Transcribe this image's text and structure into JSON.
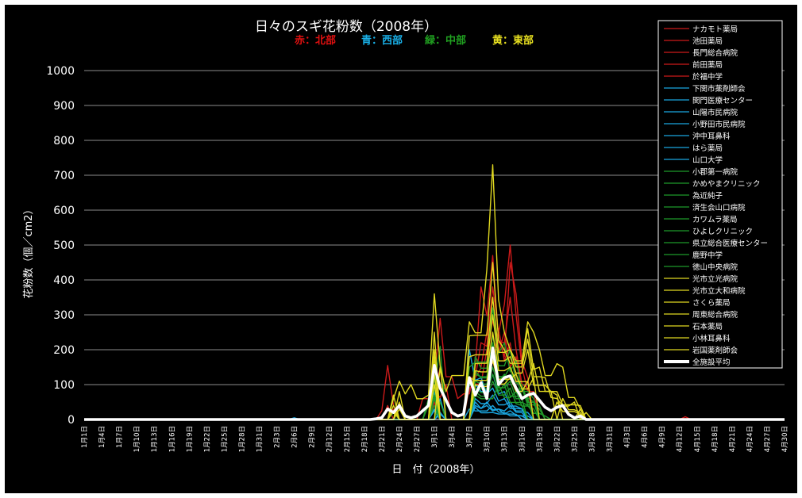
{
  "chart_data": {
    "type": "line",
    "title": "日々のスギ花粉数（2008年）",
    "region_labels": [
      {
        "text": "赤：北部",
        "color": "#e01010"
      },
      {
        "text": "青：西部",
        "color": "#19b0e8"
      },
      {
        "text": "緑：中部",
        "color": "#20a020"
      },
      {
        "text": "黄：東部",
        "color": "#e8e020"
      }
    ],
    "xlabel": "日　付（2008年）",
    "ylabel": "花粉数（個／cm2）",
    "ylim": [
      0,
      1000
    ],
    "yticks": [
      0,
      100,
      200,
      300,
      400,
      500,
      600,
      700,
      800,
      900,
      1000
    ],
    "x_start": "2008-01-01",
    "num_days": 121,
    "x_tick_labels": [
      "1月1日",
      "1月4日",
      "1月7日",
      "1月10日",
      "1月13日",
      "1月16日",
      "1月19日",
      "1月22日",
      "1月25日",
      "1月28日",
      "1月31日",
      "2月3日",
      "2月6日",
      "2月9日",
      "2月12日",
      "2月15日",
      "2月18日",
      "2月21日",
      "2月24日",
      "2月27日",
      "3月1日",
      "3月4日",
      "3月7日",
      "3月10日",
      "3月13日",
      "3月16日",
      "3月19日",
      "3月22日",
      "3月25日",
      "3月28日",
      "3月31日",
      "4月3日",
      "4月6日",
      "4月9日",
      "4月12日",
      "4月15日",
      "4月18日",
      "4月21日",
      "4月24日",
      "4月27日",
      "4月30日"
    ],
    "grid": true,
    "legend_position": "right",
    "series": [
      {
        "name": "ナカモト薬局",
        "color": "#cc1a1a",
        "peaks": [
          [
            51,
            25
          ],
          [
            52,
            155
          ],
          [
            53,
            40
          ],
          [
            58,
            60
          ],
          [
            60,
            110
          ],
          [
            61,
            290
          ],
          [
            64,
            60
          ],
          [
            67,
            150
          ],
          [
            68,
            380
          ],
          [
            70,
            470
          ],
          [
            72,
            180
          ],
          [
            73,
            450
          ],
          [
            74,
            360
          ],
          [
            76,
            120
          ]
        ]
      },
      {
        "name": "池田薬局",
        "color": "#cc1a1a",
        "peaks": [
          [
            53,
            30
          ],
          [
            59,
            50
          ],
          [
            61,
            150
          ],
          [
            66,
            120
          ],
          [
            68,
            220
          ],
          [
            70,
            380
          ],
          [
            72,
            330
          ],
          [
            73,
            500
          ],
          [
            74,
            300
          ],
          [
            75,
            150
          ],
          [
            77,
            80
          ],
          [
            103,
            8
          ]
        ]
      },
      {
        "name": "長門総合病院",
        "color": "#cc1a1a",
        "peaks": [
          [
            52,
            40
          ],
          [
            60,
            80
          ],
          [
            62,
            100
          ],
          [
            67,
            180
          ],
          [
            69,
            250
          ],
          [
            70,
            280
          ],
          [
            73,
            350
          ],
          [
            74,
            200
          ],
          [
            76,
            90
          ]
        ]
      },
      {
        "name": "前田薬局",
        "color": "#cc1a1a",
        "peaks": [
          [
            53,
            20
          ],
          [
            60,
            60
          ],
          [
            66,
            90
          ],
          [
            69,
            200
          ],
          [
            71,
            260
          ],
          [
            73,
            220
          ],
          [
            75,
            100
          ],
          [
            78,
            40
          ]
        ]
      },
      {
        "name": "於福中学",
        "color": "#cc1a1a",
        "peaks": [
          [
            60,
            50
          ],
          [
            67,
            120
          ],
          [
            70,
            300
          ],
          [
            72,
            250
          ],
          [
            74,
            180
          ],
          [
            76,
            60
          ]
        ]
      },
      {
        "name": "下関市薬剤師会",
        "color": "#1aa6e0",
        "peaks": [
          [
            36,
            5
          ],
          [
            61,
            60
          ],
          [
            67,
            40
          ],
          [
            69,
            50
          ],
          [
            71,
            30
          ],
          [
            73,
            40
          ],
          [
            75,
            20
          ]
        ]
      },
      {
        "name": "関門医療センター",
        "color": "#1aa6e0",
        "peaks": [
          [
            60,
            80
          ],
          [
            66,
            200
          ],
          [
            68,
            120
          ],
          [
            70,
            90
          ],
          [
            72,
            60
          ],
          [
            75,
            30
          ]
        ]
      },
      {
        "name": "山陽市民病院",
        "color": "#1aa6e0",
        "peaks": [
          [
            60,
            40
          ],
          [
            67,
            100
          ],
          [
            70,
            130
          ],
          [
            72,
            80
          ],
          [
            75,
            30
          ]
        ]
      },
      {
        "name": "小野田市民病院",
        "color": "#1aa6e0",
        "peaks": [
          [
            60,
            30
          ],
          [
            67,
            60
          ],
          [
            70,
            70
          ],
          [
            73,
            50
          ],
          [
            76,
            20
          ]
        ]
      },
      {
        "name": "沖中耳鼻科",
        "color": "#1aa6e0",
        "peaks": [
          [
            61,
            20
          ],
          [
            67,
            50
          ],
          [
            69,
            40
          ],
          [
            71,
            30
          ],
          [
            74,
            15
          ]
        ]
      },
      {
        "name": "はら薬局",
        "color": "#1aa6e0",
        "peaks": [
          [
            60,
            25
          ],
          [
            66,
            30
          ],
          [
            70,
            40
          ],
          [
            72,
            20
          ],
          [
            76,
            10
          ]
        ]
      },
      {
        "name": "山口大学",
        "color": "#1aa6e0",
        "peaks": [
          [
            61,
            15
          ],
          [
            67,
            35
          ],
          [
            70,
            20
          ],
          [
            73,
            25
          ],
          [
            75,
            10
          ]
        ]
      },
      {
        "name": "小郡第一病院",
        "color": "#1e9a2a",
        "peaks": [
          [
            53,
            20
          ],
          [
            59,
            60
          ],
          [
            60,
            160
          ],
          [
            67,
            180
          ],
          [
            70,
            240
          ],
          [
            73,
            200
          ],
          [
            75,
            100
          ],
          [
            78,
            40
          ]
        ]
      },
      {
        "name": "かめやまクリニック",
        "color": "#1e9a2a",
        "peaks": [
          [
            53,
            25
          ],
          [
            60,
            120
          ],
          [
            66,
            150
          ],
          [
            70,
            320
          ],
          [
            72,
            220
          ],
          [
            74,
            170
          ],
          [
            77,
            60
          ]
        ]
      },
      {
        "name": "為近純子",
        "color": "#1e9a2a",
        "peaks": [
          [
            60,
            100
          ],
          [
            67,
            140
          ],
          [
            70,
            200
          ],
          [
            73,
            150
          ],
          [
            75,
            90
          ],
          [
            78,
            30
          ]
        ]
      },
      {
        "name": "済生会山口病院",
        "color": "#1e9a2a",
        "peaks": [
          [
            59,
            40
          ],
          [
            61,
            210
          ],
          [
            67,
            110
          ],
          [
            70,
            180
          ],
          [
            72,
            130
          ],
          [
            76,
            60
          ]
        ]
      },
      {
        "name": "カワムラ薬局",
        "color": "#1e9a2a",
        "peaks": [
          [
            60,
            90
          ],
          [
            67,
            130
          ],
          [
            70,
            220
          ],
          [
            74,
            130
          ],
          [
            77,
            50
          ]
        ]
      },
      {
        "name": "ひよしクリニック",
        "color": "#1e9a2a",
        "peaks": [
          [
            60,
            70
          ],
          [
            66,
            100
          ],
          [
            70,
            150
          ],
          [
            73,
            110
          ],
          [
            75,
            60
          ]
        ]
      },
      {
        "name": "県立総合医療センター",
        "color": "#1e9a2a",
        "peaks": [
          [
            60,
            60
          ],
          [
            67,
            90
          ],
          [
            70,
            130
          ],
          [
            72,
            100
          ],
          [
            76,
            40
          ],
          [
            79,
            10
          ]
        ]
      },
      {
        "name": "鹿野中学",
        "color": "#1e9a2a",
        "peaks": [
          [
            61,
            50
          ],
          [
            67,
            80
          ],
          [
            70,
            110
          ],
          [
            73,
            90
          ],
          [
            75,
            40
          ]
        ]
      },
      {
        "name": "徳山中央病院",
        "color": "#1e9a2a",
        "peaks": [
          [
            60,
            40
          ],
          [
            67,
            70
          ],
          [
            71,
            100
          ],
          [
            74,
            80
          ],
          [
            77,
            30
          ]
        ]
      },
      {
        "name": "光市立光病院",
        "color": "#e0d820",
        "peaks": [
          [
            53,
            60
          ],
          [
            54,
            110
          ],
          [
            56,
            100
          ],
          [
            59,
            70
          ],
          [
            60,
            360
          ],
          [
            62,
            80
          ],
          [
            66,
            280
          ],
          [
            69,
            430
          ],
          [
            70,
            730
          ],
          [
            72,
            250
          ],
          [
            73,
            200
          ],
          [
            76,
            280
          ],
          [
            77,
            250
          ],
          [
            78,
            200
          ],
          [
            81,
            160
          ],
          [
            82,
            150
          ],
          [
            85,
            30
          ]
        ]
      },
      {
        "name": "光市立大和病院",
        "color": "#e0d820",
        "peaks": [
          [
            54,
            80
          ],
          [
            60,
            250
          ],
          [
            66,
            240
          ],
          [
            70,
            450
          ],
          [
            72,
            200
          ],
          [
            76,
            260
          ],
          [
            78,
            150
          ],
          [
            81,
            80
          ],
          [
            85,
            40
          ]
        ]
      },
      {
        "name": "さくら薬局",
        "color": "#e0d820",
        "peaks": [
          [
            53,
            70
          ],
          [
            60,
            200
          ],
          [
            66,
            180
          ],
          [
            70,
            350
          ],
          [
            73,
            200
          ],
          [
            76,
            230
          ],
          [
            79,
            120
          ],
          [
            81,
            60
          ],
          [
            84,
            50
          ]
        ]
      },
      {
        "name": "周東総合病院",
        "color": "#e0d820",
        "peaks": [
          [
            54,
            50
          ],
          [
            60,
            180
          ],
          [
            67,
            160
          ],
          [
            70,
            300
          ],
          [
            73,
            180
          ],
          [
            76,
            200
          ],
          [
            80,
            80
          ],
          [
            85,
            30
          ]
        ]
      },
      {
        "name": "石本薬局",
        "color": "#e0d820",
        "peaks": [
          [
            53,
            40
          ],
          [
            61,
            150
          ],
          [
            67,
            140
          ],
          [
            70,
            250
          ],
          [
            73,
            150
          ],
          [
            77,
            160
          ],
          [
            81,
            70
          ],
          [
            86,
            20
          ]
        ]
      },
      {
        "name": "小林耳鼻科",
        "color": "#e0d820",
        "peaks": [
          [
            54,
            30
          ],
          [
            60,
            130
          ],
          [
            66,
            120
          ],
          [
            70,
            200
          ],
          [
            74,
            130
          ],
          [
            77,
            120
          ],
          [
            82,
            60
          ],
          [
            85,
            20
          ]
        ]
      },
      {
        "name": "岩国薬剤師会",
        "color": "#e0d820",
        "peaks": [
          [
            53,
            25
          ],
          [
            60,
            100
          ],
          [
            67,
            100
          ],
          [
            70,
            170
          ],
          [
            73,
            120
          ],
          [
            76,
            110
          ],
          [
            81,
            50
          ],
          [
            85,
            15
          ]
        ]
      },
      {
        "name": "全施設平均",
        "color": "#ffffff",
        "average": true,
        "peaks": [
          [
            49,
            0
          ],
          [
            51,
            5
          ],
          [
            52,
            30
          ],
          [
            53,
            20
          ],
          [
            54,
            40
          ],
          [
            55,
            10
          ],
          [
            56,
            5
          ],
          [
            57,
            10
          ],
          [
            58,
            25
          ],
          [
            59,
            40
          ],
          [
            60,
            155
          ],
          [
            61,
            90
          ],
          [
            62,
            55
          ],
          [
            63,
            20
          ],
          [
            64,
            10
          ],
          [
            65,
            15
          ],
          [
            66,
            120
          ],
          [
            67,
            70
          ],
          [
            68,
            105
          ],
          [
            69,
            60
          ],
          [
            70,
            205
          ],
          [
            71,
            100
          ],
          [
            72,
            120
          ],
          [
            73,
            125
          ],
          [
            74,
            90
          ],
          [
            75,
            60
          ],
          [
            76,
            70
          ],
          [
            77,
            75
          ],
          [
            78,
            55
          ],
          [
            79,
            35
          ],
          [
            80,
            25
          ],
          [
            81,
            35
          ],
          [
            82,
            40
          ],
          [
            83,
            15
          ],
          [
            84,
            5
          ],
          [
            85,
            10
          ],
          [
            86,
            0
          ]
        ]
      }
    ]
  }
}
